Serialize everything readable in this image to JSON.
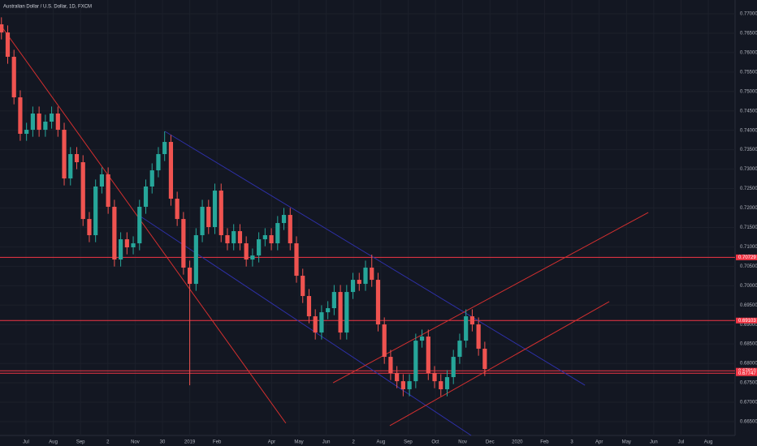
{
  "chart_data": {
    "type": "candlestick",
    "title": "Australian Dollar / U.S. Dollar, 1D, FXCM",
    "up_color": "#26a69a",
    "down_color": "#ef5350",
    "grid": true,
    "xlim": [
      -0.952,
      25.98
    ],
    "ylim": [
      0.66144,
      0.77355
    ],
    "xticks": [
      {
        "value": 0,
        "label": "Jul"
      },
      {
        "value": 1,
        "label": "Aug"
      },
      {
        "value": 2,
        "label": "Sep"
      },
      {
        "value": 3,
        "label": "2"
      },
      {
        "value": 4,
        "label": "Nov"
      },
      {
        "value": 5,
        "label": "30"
      },
      {
        "value": 6,
        "label": "2019"
      },
      {
        "value": 7,
        "label": "Feb"
      },
      {
        "value": 9,
        "label": "Apr"
      },
      {
        "value": 10,
        "label": "May"
      },
      {
        "value": 11,
        "label": "Jun"
      },
      {
        "value": 12,
        "label": "2"
      },
      {
        "value": 13,
        "label": "Aug"
      },
      {
        "value": 14,
        "label": "Sep"
      },
      {
        "value": 15,
        "label": "Oct"
      },
      {
        "value": 16,
        "label": "Nov"
      },
      {
        "value": 17,
        "label": "Dec"
      },
      {
        "value": 18,
        "label": "2020"
      },
      {
        "value": 19,
        "label": "Feb"
      },
      {
        "value": 20,
        "label": "3"
      },
      {
        "value": 21,
        "label": "Apr"
      },
      {
        "value": 22,
        "label": "May"
      },
      {
        "value": 23,
        "label": "Jun"
      },
      {
        "value": 24,
        "label": "Jul"
      },
      {
        "value": 25,
        "label": "Aug"
      }
    ],
    "yticks": [
      {
        "value": 0.665,
        "label": "0.66500"
      },
      {
        "value": 0.67,
        "label": "0.67000"
      },
      {
        "value": 0.675,
        "label": "0.67500"
      },
      {
        "value": 0.68,
        "label": "0.68000"
      },
      {
        "value": 0.685,
        "label": "0.68500"
      },
      {
        "value": 0.69,
        "label": "0.69000"
      },
      {
        "value": 0.695,
        "label": "0.69500"
      },
      {
        "value": 0.7,
        "label": "0.70000"
      },
      {
        "value": 0.705,
        "label": "0.70500"
      },
      {
        "value": 0.71,
        "label": "0.71000"
      },
      {
        "value": 0.715,
        "label": "0.71500"
      },
      {
        "value": 0.72,
        "label": "0.72000"
      },
      {
        "value": 0.725,
        "label": "0.72500"
      },
      {
        "value": 0.73,
        "label": "0.73000"
      },
      {
        "value": 0.735,
        "label": "0.73500"
      },
      {
        "value": 0.74,
        "label": "0.74000"
      },
      {
        "value": 0.745,
        "label": "0.74500"
      },
      {
        "value": 0.75,
        "label": "0.75000"
      },
      {
        "value": 0.755,
        "label": "0.75500"
      },
      {
        "value": 0.76,
        "label": "0.76000"
      },
      {
        "value": 0.765,
        "label": "0.76500"
      },
      {
        "value": 0.77,
        "label": "0.77000"
      }
    ],
    "x": [
      -0.9,
      -0.67,
      -0.44,
      -0.21,
      0.02,
      0.25,
      0.48,
      0.71,
      0.94,
      1.17,
      1.4,
      1.63,
      1.86,
      2.09,
      2.32,
      2.55,
      2.78,
      3.01,
      3.24,
      3.47,
      3.7,
      3.93,
      4.16,
      4.39,
      4.62,
      4.85,
      5.08,
      5.31,
      5.54,
      5.77,
      6.0,
      6.23,
      6.46,
      6.69,
      6.92,
      7.15,
      7.38,
      7.61,
      7.84,
      8.07,
      8.3,
      8.53,
      8.76,
      8.99,
      9.22,
      9.45,
      9.68,
      9.91,
      10.14,
      10.37,
      10.6,
      10.83,
      11.06,
      11.29,
      11.52,
      11.75,
      11.98,
      12.21,
      12.44,
      12.67,
      12.9,
      13.13,
      13.36,
      13.59,
      13.82,
      14.05,
      14.28,
      14.51,
      14.74,
      14.97,
      15.2,
      15.43,
      15.66,
      15.89,
      16.12,
      16.35,
      16.58,
      16.81
    ],
    "open": [
      0.76729,
      0.7652,
      0.75893,
      0.74849,
      0.7391,
      0.74014,
      0.74432,
      0.74014,
      0.74223,
      0.74432,
      0.74014,
      0.72761,
      0.73388,
      0.73179,
      0.71717,
      0.713,
      0.72553,
      0.72866,
      0.72031,
      0.70673,
      0.71195,
      0.70987,
      0.71091,
      0.72031,
      0.72553,
      0.7297,
      0.73388,
      0.73701,
      0.72239,
      0.71717,
      0.70465,
      0.70047,
      0.713,
      0.72031,
      0.71509,
      0.72448,
      0.713,
      0.71091,
      0.71404,
      0.71091,
      0.70673,
      0.70778,
      0.71195,
      0.713,
      0.71091,
      0.71613,
      0.71822,
      0.71091,
      0.70256,
      0.69734,
      0.69212,
      0.68794,
      0.69316,
      0.69421,
      0.69838,
      0.68794,
      0.69838,
      0.70151,
      0.70047,
      0.70465,
      0.70151,
      0.69003,
      0.68168,
      0.6775,
      0.67541,
      0.67333,
      0.67541,
      0.68585,
      0.6869,
      0.6775,
      0.67541,
      0.67333,
      0.67646,
      0.68168,
      0.68585,
      0.69212,
      0.69003,
      0.68377
    ],
    "high": [
      0.76909,
      0.767,
      0.76073,
      0.75029,
      0.74194,
      0.74612,
      0.74612,
      0.74403,
      0.74612,
      0.74612,
      0.74194,
      0.73568,
      0.73568,
      0.73359,
      0.71897,
      0.72733,
      0.73046,
      0.73046,
      0.72211,
      0.71375,
      0.71375,
      0.71271,
      0.72211,
      0.72733,
      0.7315,
      0.73568,
      0.73973,
      0.73881,
      0.72419,
      0.71897,
      0.70645,
      0.7148,
      0.72211,
      0.72211,
      0.72628,
      0.72628,
      0.7148,
      0.71584,
      0.71584,
      0.71271,
      0.70958,
      0.71375,
      0.7148,
      0.7148,
      0.71793,
      0.72002,
      0.72002,
      0.71271,
      0.70436,
      0.69914,
      0.69392,
      0.69496,
      0.69601,
      0.70018,
      0.70018,
      0.70018,
      0.70331,
      0.70331,
      0.70645,
      0.708,
      0.70331,
      0.69183,
      0.68348,
      0.6793,
      0.67721,
      0.67721,
      0.68765,
      0.6887,
      0.6887,
      0.6793,
      0.67721,
      0.67826,
      0.68348,
      0.68765,
      0.69392,
      0.69392,
      0.69183,
      0.68557
    ],
    "low": [
      0.7634,
      0.75713,
      0.74669,
      0.7373,
      0.7373,
      0.73834,
      0.73834,
      0.73834,
      0.74043,
      0.73834,
      0.72581,
      0.72581,
      0.72999,
      0.71537,
      0.7112,
      0.7112,
      0.72373,
      0.71851,
      0.70493,
      0.70493,
      0.70807,
      0.70807,
      0.70911,
      0.71851,
      0.72373,
      0.7279,
      0.73208,
      0.72059,
      0.71537,
      0.70285,
      0.67437,
      0.69867,
      0.7112,
      0.71329,
      0.71329,
      0.7112,
      0.70911,
      0.70911,
      0.70911,
      0.70493,
      0.70493,
      0.70598,
      0.71015,
      0.70911,
      0.70911,
      0.71433,
      0.70911,
      0.70076,
      0.69554,
      0.69032,
      0.68614,
      0.68614,
      0.69136,
      0.69241,
      0.68614,
      0.68614,
      0.69658,
      0.69867,
      0.69867,
      0.69971,
      0.68823,
      0.67988,
      0.6757,
      0.67361,
      0.67153,
      0.67153,
      0.67361,
      0.68405,
      0.6757,
      0.67361,
      0.67153,
      0.67153,
      0.67466,
      0.67988,
      0.68405,
      0.68823,
      0.68197,
      0.67675
    ],
    "close": [
      0.7652,
      0.75893,
      0.74849,
      0.7391,
      0.74014,
      0.74432,
      0.74014,
      0.74223,
      0.74432,
      0.74014,
      0.72761,
      0.73388,
      0.73179,
      0.71717,
      0.713,
      0.72553,
      0.72866,
      0.72031,
      0.70673,
      0.71195,
      0.70987,
      0.71091,
      0.72031,
      0.72553,
      0.7297,
      0.73388,
      0.73701,
      0.72239,
      0.71717,
      0.70465,
      0.70047,
      0.713,
      0.72031,
      0.71509,
      0.72448,
      0.713,
      0.71091,
      0.71404,
      0.71091,
      0.70673,
      0.70778,
      0.71195,
      0.713,
      0.71091,
      0.71613,
      0.71822,
      0.71091,
      0.70256,
      0.69734,
      0.69212,
      0.68794,
      0.69316,
      0.69421,
      0.69838,
      0.68794,
      0.69838,
      0.70151,
      0.70047,
      0.70465,
      0.70151,
      0.69003,
      0.68168,
      0.6775,
      0.67541,
      0.67333,
      0.67541,
      0.68585,
      0.6869,
      0.6775,
      0.67541,
      0.67333,
      0.67646,
      0.68168,
      0.68585,
      0.69212,
      0.69003,
      0.68377,
      0.67855
    ],
    "levels": [
      {
        "value": 0.70729,
        "label": "0.70729",
        "color": "#f23645"
      },
      {
        "value": 0.69103,
        "label": "0.69103",
        "color": "#f23645"
      },
      {
        "value": 0.6781,
        "label": "0.67810",
        "color": "#f23645"
      },
      {
        "value": 0.67747,
        "label": "0.67747",
        "color": "#f23645"
      }
    ],
    "trendlines": [
      {
        "color": "#d32f2f",
        "x": [
          -0.952,
          9.52
        ],
        "y": [
          0.76729,
          0.6646
        ]
      },
      {
        "color": "#2e30a8",
        "x": [
          5.09,
          20.48
        ],
        "y": [
          0.73973,
          0.67438
        ]
      },
      {
        "color": "#2e30a8",
        "x": [
          4.11,
          16.31
        ],
        "y": [
          0.71823,
          0.66144
        ]
      },
      {
        "color": "#d32f2f",
        "x": [
          11.25,
          22.8
        ],
        "y": [
          0.675,
          0.71885
        ]
      },
      {
        "color": "#d32f2f",
        "x": [
          13.33,
          21.37
        ],
        "y": [
          0.66395,
          0.6959
        ]
      }
    ]
  }
}
